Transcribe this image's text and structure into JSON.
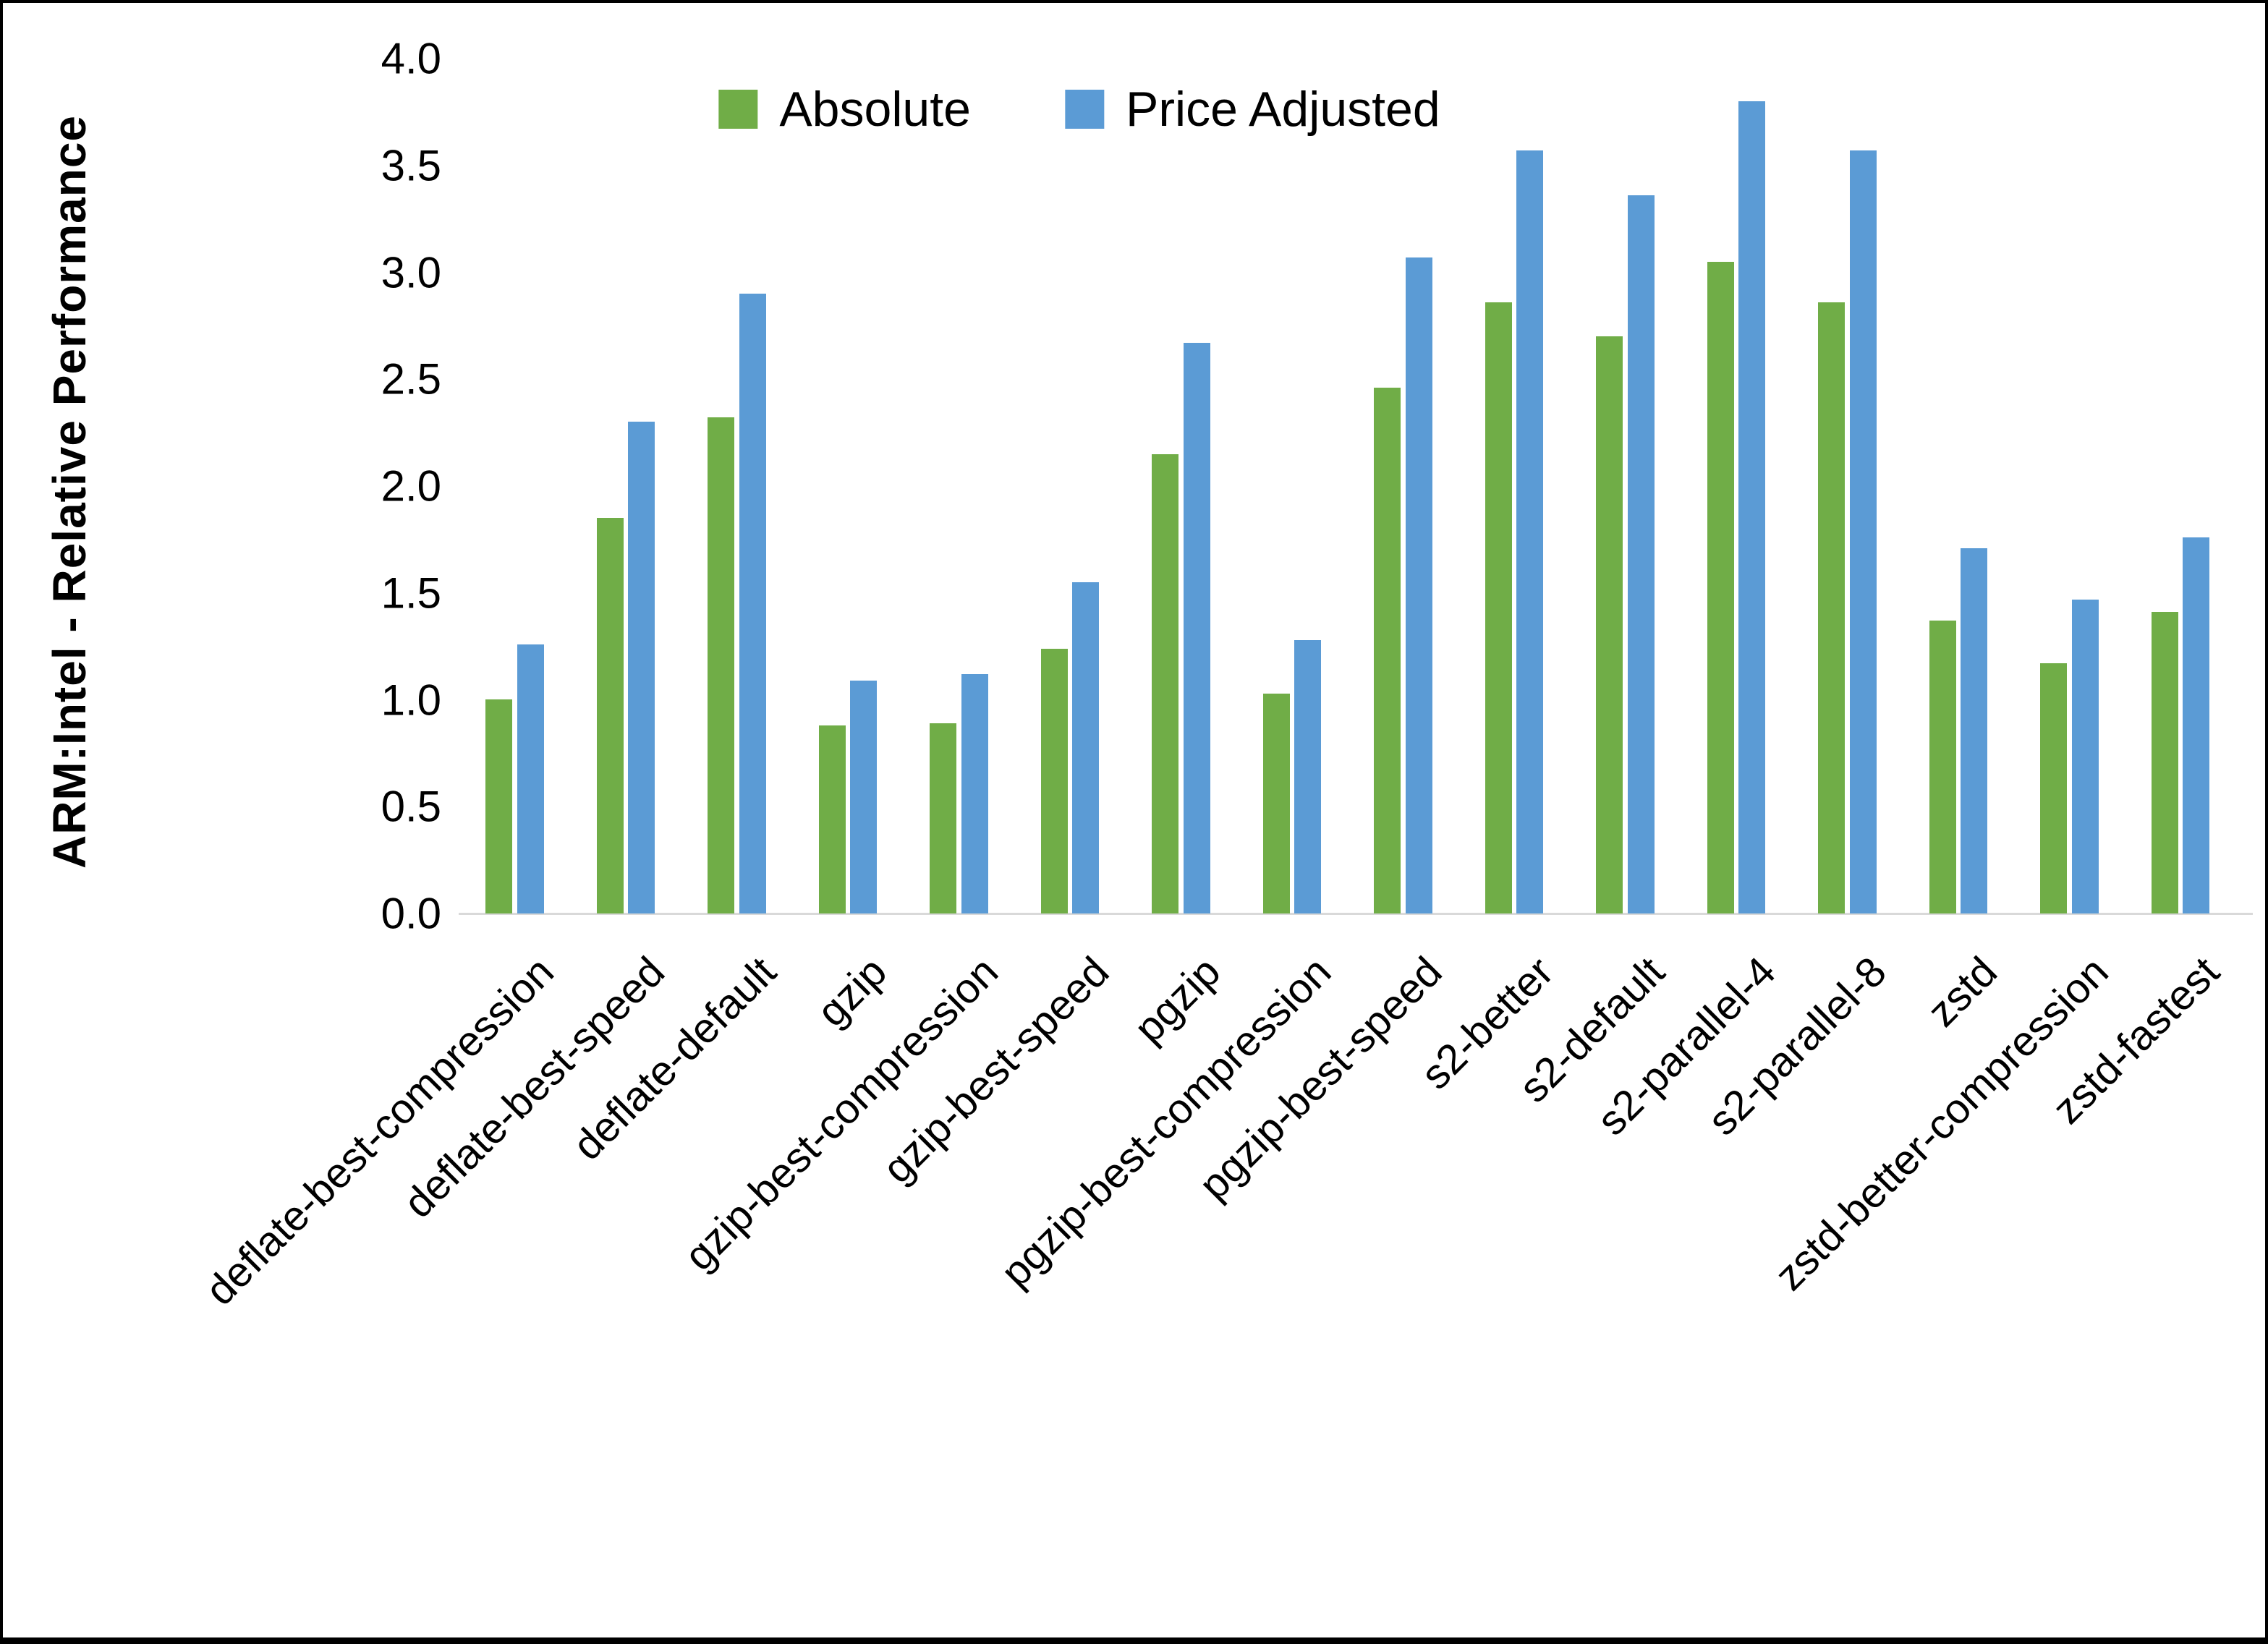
{
  "page": {
    "background": "#ffffff",
    "border_color": "#000000"
  },
  "chart_data": {
    "type": "bar",
    "title": "",
    "xlabel": "",
    "ylabel": "ARM:Intel - Relative Performance",
    "ylim": [
      0.0,
      4.0
    ],
    "ytick_step": 0.5,
    "ytick_labels": [
      "0.0",
      "0.5",
      "1.0",
      "1.5",
      "2.0",
      "2.5",
      "3.0",
      "3.5",
      "4.0"
    ],
    "grid": false,
    "legend_position": "top-center",
    "axis_line_color": "#d9d9d9",
    "categories": [
      "deflate-best-compression",
      "deflate-best-speed",
      "deflate-default",
      "gzip",
      "gzip-best-compression",
      "gzip-best-speed",
      "pgzip",
      "pgzip-best-compression",
      "pgzip-best-speed",
      "s2-better",
      "s2-default",
      "s2-parallel-4",
      "s2-parallel-8",
      "zstd",
      "zstd-better-compression",
      "zstd-fastest"
    ],
    "series": [
      {
        "name": "Absolute",
        "color": "#70ad47",
        "values": [
          1.0,
          1.85,
          2.32,
          0.88,
          0.89,
          1.24,
          2.15,
          1.03,
          2.46,
          2.86,
          2.7,
          3.05,
          2.86,
          1.37,
          1.17,
          1.41
        ]
      },
      {
        "name": "Price Adjusted",
        "color": "#5b9bd5",
        "values": [
          1.26,
          2.3,
          2.9,
          1.09,
          1.12,
          1.55,
          2.67,
          1.28,
          3.07,
          3.57,
          3.36,
          3.8,
          3.57,
          1.71,
          1.47,
          1.76
        ]
      }
    ]
  }
}
